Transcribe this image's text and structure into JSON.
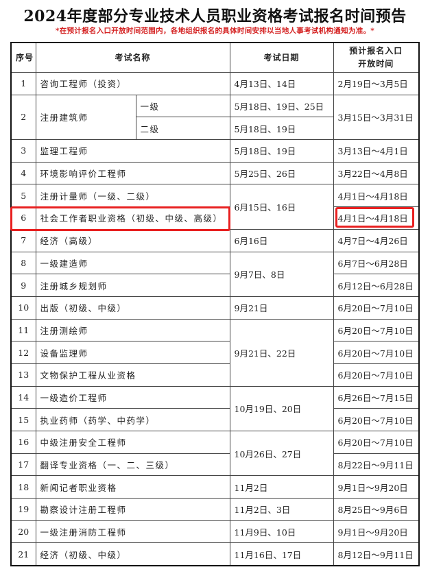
{
  "title": "2024年度部分专业技术人员职业资格考试报名时间预告",
  "note": "*在预计报名入口开放时间范围内，各地组织报名的具体时间安排以当地人事考试机构通知为准。*",
  "headers": {
    "seq": "序号",
    "name": "考试名称",
    "date": "考试日期",
    "open": "预计报名入口\n开放时间"
  },
  "highlight_color": "#e82020",
  "rows": [
    {
      "seq": "1",
      "name": "咨询工程师（投资）",
      "date": "4月13日、14日",
      "open": "2月19日～3月5日"
    },
    {
      "seq": "2",
      "name": "注册建筑师",
      "levels": [
        {
          "level": "一级",
          "date": "5月18日、19日、25日"
        },
        {
          "level": "二级",
          "date": "5月18日、19日"
        }
      ],
      "open": "3月15日～3月31日"
    },
    {
      "seq": "3",
      "name": "监理工程师",
      "date": "5月18日、19日",
      "open": "3月13日～4月1日"
    },
    {
      "seq": "4",
      "name": "环境影响评价工程师",
      "date": "5月25日、26日",
      "open": "3月22日～4月8日"
    },
    {
      "seq": "5",
      "name": "注册计量师（一级、二级）",
      "date": "6月15日、16日",
      "dateSpan": 2,
      "open": "4月1日～4月18日"
    },
    {
      "seq": "6",
      "name": "社会工作者职业资格（初级、中级、高级）",
      "open": "4月1日～4月18日",
      "highlighted": true
    },
    {
      "seq": "7",
      "name": "经济（高级）",
      "date": "6月16日",
      "open": "4月7日～4月26日"
    },
    {
      "seq": "8",
      "name": "一级建造师",
      "date": "9月7日、8日",
      "dateSpan": 2,
      "open": "6月7日～6月28日"
    },
    {
      "seq": "9",
      "name": "注册城乡规划师",
      "open": "6月12日～6月28日"
    },
    {
      "seq": "10",
      "name": "出版（初级、中级）",
      "date": "9月21日",
      "open": "6月20日～7月10日"
    },
    {
      "seq": "11",
      "name": "注册测绘师",
      "date": "9月21日、22日",
      "dateSpan": 3,
      "open": "6月20日～7月10日"
    },
    {
      "seq": "12",
      "name": "设备监理师",
      "open": "6月20日～7月10日"
    },
    {
      "seq": "13",
      "name": "文物保护工程从业资格",
      "open": "6月20日～7月10日"
    },
    {
      "seq": "14",
      "name": "一级造价工程师",
      "date": "10月19日、20日",
      "dateSpan": 2,
      "open": "6月26日～7月15日"
    },
    {
      "seq": "15",
      "name": "执业药师（药学、中药学）",
      "open": "6月20日～7月10日"
    },
    {
      "seq": "16",
      "name": "中级注册安全工程师",
      "date": "10月26日、27日",
      "dateSpan": 2,
      "open": "6月20日～7月10日"
    },
    {
      "seq": "17",
      "name": "翻译专业资格（一、二、三级）",
      "open": "8月22日～9月11日"
    },
    {
      "seq": "18",
      "name": "新闻记者职业资格",
      "date": "11月2日",
      "open": "9月1日～9月20日"
    },
    {
      "seq": "19",
      "name": "勘察设计注册工程师",
      "date": "11月2日、3日",
      "open": "8月25日～9月6日"
    },
    {
      "seq": "20",
      "name": "一级注册消防工程师",
      "date": "11月9日、10日",
      "open": "9月1日～9月20日"
    },
    {
      "seq": "21",
      "name": "经济（初级、中级）",
      "date": "11月16日、17日",
      "open": "8月12日～9月11日"
    }
  ]
}
